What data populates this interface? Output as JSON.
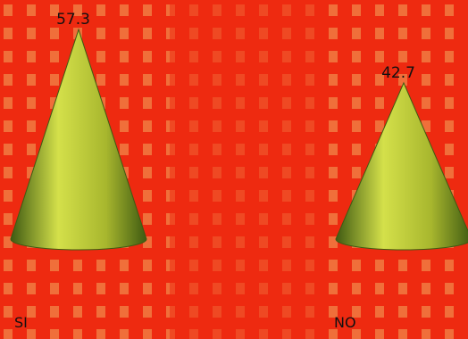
{
  "chart_data": {
    "type": "bar",
    "bar_shape": "cone",
    "categories": [
      "SI",
      "NO"
    ],
    "values": [
      57.3,
      42.7
    ],
    "data_labels": [
      "57.3",
      "42.7"
    ],
    "title": "",
    "xlabel": "",
    "ylabel": "",
    "ylim": [
      0,
      60
    ],
    "grid": false,
    "legend": "none"
  },
  "colors": {
    "background": "#ee2a10",
    "pattern": "#f2a85c",
    "cone_light": "#d4e04a",
    "cone_mid": "#a8b72e",
    "cone_dark": "#3f5a12"
  }
}
